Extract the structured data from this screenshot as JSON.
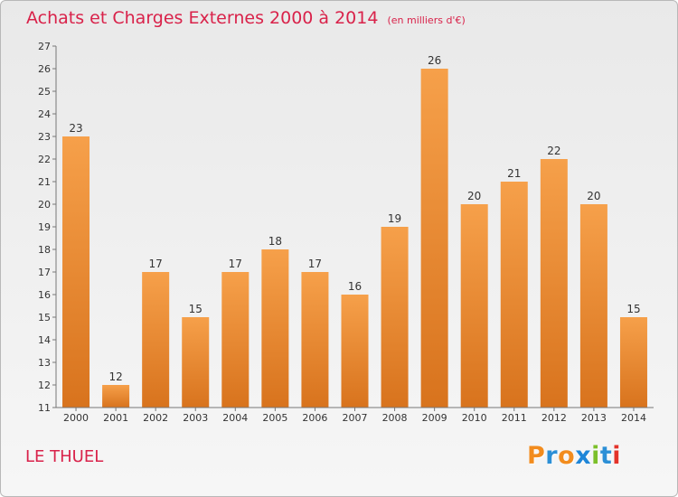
{
  "chart_data": {
    "type": "bar",
    "title": "Achats et Charges Externes 2000 à 2014",
    "subtitle": "(en milliers d'€)",
    "categories": [
      "2000",
      "2001",
      "2002",
      "2003",
      "2004",
      "2005",
      "2006",
      "2007",
      "2008",
      "2009",
      "2010",
      "2011",
      "2012",
      "2013",
      "2014"
    ],
    "values": [
      23,
      12,
      17,
      15,
      17,
      18,
      17,
      16,
      19,
      26,
      20,
      21,
      22,
      20,
      15
    ],
    "ylim": [
      11,
      27
    ],
    "yticks": [
      11,
      12,
      13,
      14,
      15,
      16,
      17,
      18,
      19,
      20,
      21,
      22,
      23,
      24,
      25,
      26,
      27
    ],
    "grid": false,
    "bar_color_top": "#f6a04a",
    "bar_color_bottom": "#d8731d"
  },
  "commune": "LE THUEL",
  "logo": {
    "letters": [
      "P",
      "r",
      "o",
      "x",
      "i",
      "t",
      "i"
    ],
    "colors": [
      "#f28c1e",
      "#2c8fd6",
      "#f28c1e",
      "#1f86d8",
      "#7cbf2a",
      "#2c8fd6",
      "#e3332a"
    ]
  }
}
